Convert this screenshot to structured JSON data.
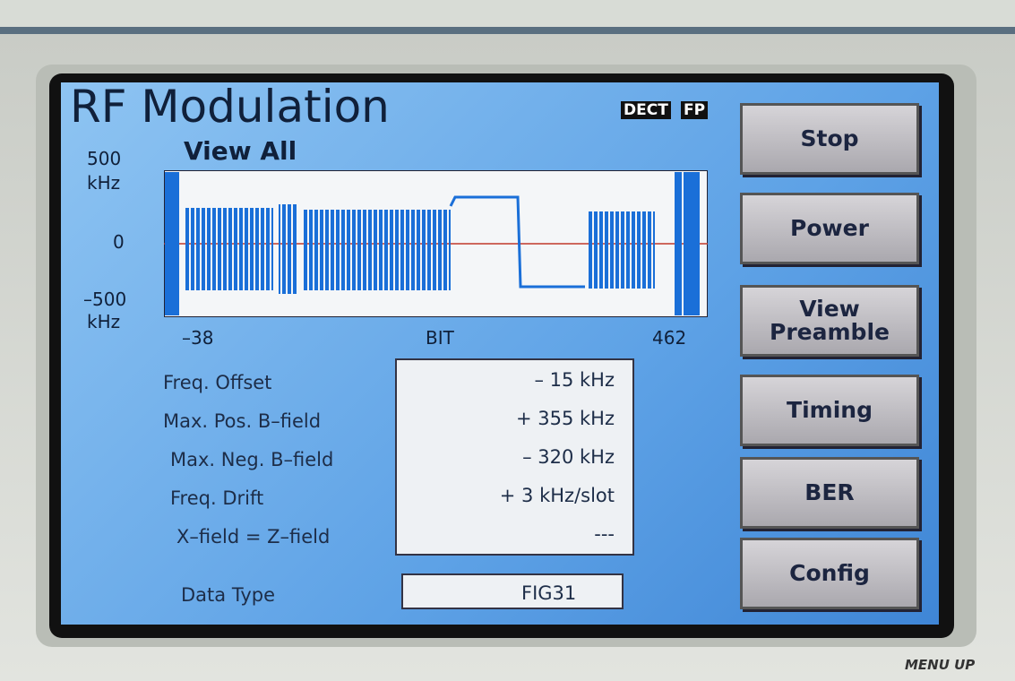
{
  "header": {
    "title": "RF Modulation",
    "badges": [
      "DECT",
      "FP"
    ],
    "subtitle": "View All"
  },
  "plot": {
    "y_top": "500",
    "y_top_unit": "kHz",
    "y_mid": "0",
    "y_bottom": "–500",
    "y_bottom_unit": "kHz",
    "x_start": "–38",
    "x_label": "BIT",
    "x_end": "462"
  },
  "measurements": [
    {
      "label": "Freq. Offset",
      "value": "– 15 kHz"
    },
    {
      "label": "Max. Pos. B–field",
      "value": "+ 355 kHz"
    },
    {
      "label": "Max. Neg. B–field",
      "value": "– 320 kHz"
    },
    {
      "label": "Freq. Drift",
      "value": "+ 3 kHz/slot"
    },
    {
      "label": "X–field = Z–field",
      "value": "---"
    }
  ],
  "data_type": {
    "label": "Data Type",
    "value": "FIG31"
  },
  "buttons": [
    "Stop",
    "Power",
    "View Preamble",
    "Timing",
    "BER",
    "Config"
  ],
  "footer": "MENU UP"
}
